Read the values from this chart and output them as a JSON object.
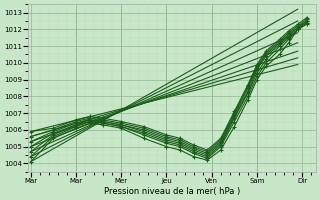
{
  "xlabel": "Pression niveau de la mer( hPa )",
  "background_color": "#c8e6c8",
  "plot_bg_color": "#c8e6c8",
  "grid_minor_color": "#b8ddb8",
  "grid_major_color": "#90b890",
  "line_color": "#1a5c1a",
  "ylim": [
    1003.5,
    1013.5
  ],
  "yticks": [
    1004,
    1005,
    1006,
    1007,
    1008,
    1009,
    1010,
    1011,
    1012,
    1013
  ],
  "xtick_labels": [
    "Mar",
    "Mar",
    "Mer",
    "Jeu",
    "Ven",
    "Sam",
    "Dir"
  ],
  "xtick_positions": [
    0,
    1,
    2,
    3,
    4,
    5,
    6
  ],
  "xlim": [
    -0.05,
    6.3
  ],
  "straight_lines": [
    {
      "x0": 0.0,
      "y0": 1004.1,
      "x1": 5.9,
      "y1": 1013.2
    },
    {
      "x0": 0.0,
      "y0": 1004.4,
      "x1": 5.9,
      "y1": 1012.5
    },
    {
      "x0": 0.0,
      "y0": 1004.7,
      "x1": 5.9,
      "y1": 1011.8
    },
    {
      "x0": 0.0,
      "y0": 1005.0,
      "x1": 5.9,
      "y1": 1011.2
    },
    {
      "x0": 0.0,
      "y0": 1005.3,
      "x1": 5.9,
      "y1": 1010.7
    },
    {
      "x0": 0.0,
      "y0": 1005.6,
      "x1": 5.9,
      "y1": 1010.3
    },
    {
      "x0": 0.0,
      "y0": 1005.9,
      "x1": 5.9,
      "y1": 1009.9
    }
  ],
  "curved_lines": [
    {
      "x": [
        0.0,
        0.5,
        1.0,
        1.3,
        1.6,
        2.0,
        2.5,
        3.0,
        3.3,
        3.6,
        3.9,
        4.2,
        4.5,
        4.8,
        5.0,
        5.2,
        5.5,
        5.7,
        5.9,
        6.1
      ],
      "y": [
        1004.1,
        1005.5,
        1006.1,
        1006.4,
        1006.3,
        1006.1,
        1005.5,
        1005.0,
        1004.8,
        1004.4,
        1004.2,
        1004.8,
        1006.2,
        1007.8,
        1009.0,
        1009.8,
        1010.5,
        1011.2,
        1012.0,
        1012.3
      ]
    },
    {
      "x": [
        0.0,
        0.5,
        1.0,
        1.3,
        1.6,
        2.0,
        2.5,
        3.0,
        3.3,
        3.6,
        3.9,
        4.2,
        4.5,
        4.8,
        5.0,
        5.2,
        5.5,
        5.7,
        5.9,
        6.1
      ],
      "y": [
        1004.4,
        1005.6,
        1006.2,
        1006.5,
        1006.4,
        1006.2,
        1005.7,
        1005.2,
        1005.0,
        1004.6,
        1004.3,
        1005.0,
        1006.5,
        1008.0,
        1009.2,
        1010.0,
        1010.8,
        1011.4,
        1012.0,
        1012.4
      ]
    },
    {
      "x": [
        0.0,
        0.5,
        1.0,
        1.3,
        1.6,
        2.0,
        2.5,
        3.0,
        3.3,
        3.6,
        3.9,
        4.2,
        4.5,
        4.8,
        5.0,
        5.2,
        5.5,
        5.7,
        5.9,
        6.1
      ],
      "y": [
        1004.7,
        1005.7,
        1006.3,
        1006.5,
        1006.4,
        1006.2,
        1005.8,
        1005.3,
        1005.1,
        1004.7,
        1004.4,
        1005.1,
        1006.7,
        1008.2,
        1009.4,
        1010.2,
        1011.0,
        1011.5,
        1012.0,
        1012.4
      ]
    },
    {
      "x": [
        0.0,
        0.5,
        1.0,
        1.3,
        1.6,
        2.0,
        2.5,
        3.0,
        3.3,
        3.6,
        3.9,
        4.2,
        4.5,
        4.8,
        5.0,
        5.2,
        5.5,
        5.7,
        5.9,
        6.1
      ],
      "y": [
        1005.0,
        1005.8,
        1006.3,
        1006.6,
        1006.5,
        1006.3,
        1005.9,
        1005.4,
        1005.2,
        1004.8,
        1004.5,
        1005.2,
        1006.8,
        1008.3,
        1009.6,
        1010.4,
        1011.1,
        1011.6,
        1012.1,
        1012.5
      ]
    },
    {
      "x": [
        0.0,
        0.5,
        1.0,
        1.3,
        1.6,
        2.0,
        2.5,
        3.0,
        3.3,
        3.6,
        3.9,
        4.2,
        4.5,
        4.8,
        5.0,
        5.2,
        5.5,
        5.7,
        5.9,
        6.1
      ],
      "y": [
        1005.3,
        1005.9,
        1006.4,
        1006.6,
        1006.5,
        1006.3,
        1006.0,
        1005.5,
        1005.3,
        1004.9,
        1004.6,
        1005.3,
        1006.9,
        1008.5,
        1009.7,
        1010.5,
        1011.2,
        1011.7,
        1012.1,
        1012.5
      ]
    },
    {
      "x": [
        0.0,
        0.5,
        1.0,
        1.3,
        1.6,
        2.0,
        2.5,
        3.0,
        3.3,
        3.6,
        3.9,
        4.2,
        4.5,
        4.8,
        5.0,
        5.2,
        5.5,
        5.7,
        5.9,
        6.1
      ],
      "y": [
        1005.6,
        1006.0,
        1006.5,
        1006.7,
        1006.6,
        1006.4,
        1006.1,
        1005.6,
        1005.4,
        1005.0,
        1004.7,
        1005.4,
        1007.0,
        1008.6,
        1009.8,
        1010.6,
        1011.3,
        1011.8,
        1012.2,
        1012.6
      ]
    },
    {
      "x": [
        0.0,
        0.5,
        1.0,
        1.3,
        1.6,
        2.0,
        2.5,
        3.0,
        3.3,
        3.6,
        3.9,
        4.2,
        4.5,
        4.8,
        5.0,
        5.2,
        5.5,
        5.7,
        5.9,
        6.1
      ],
      "y": [
        1005.9,
        1006.1,
        1006.6,
        1006.8,
        1006.7,
        1006.5,
        1006.2,
        1005.7,
        1005.5,
        1005.1,
        1004.8,
        1005.5,
        1007.1,
        1008.7,
        1009.9,
        1010.7,
        1011.4,
        1011.9,
        1012.3,
        1012.7
      ]
    }
  ]
}
